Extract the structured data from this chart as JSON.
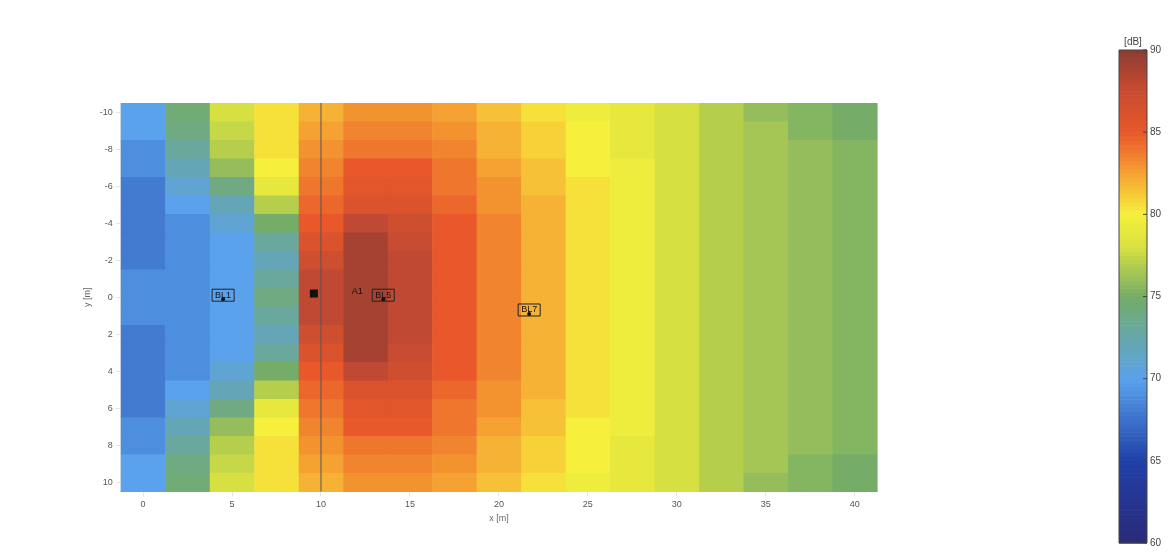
{
  "chart_data": {
    "type": "heatmap",
    "xlabel": "x [m]",
    "ylabel": "y [m]",
    "clabel": "[dB]",
    "clim": [
      60,
      90
    ],
    "cticks": [
      60,
      65,
      70,
      75,
      80,
      85,
      90
    ],
    "categories": [
      "0",
      null,
      "5",
      null,
      "10",
      null,
      "15",
      null,
      "20",
      null,
      "25",
      null,
      "30",
      null,
      "35",
      null,
      "40"
    ],
    "y_categories": [
      "-10",
      null,
      "-8",
      null,
      "-6",
      null,
      "-4",
      null,
      "-2",
      null,
      "0",
      null,
      "2",
      null,
      "4",
      null,
      "6",
      null,
      "8",
      null,
      "10"
    ],
    "cells": [
      [
        70,
        74.5,
        78,
        80.5,
        82,
        83,
        83,
        82.5,
        81.5,
        80.5,
        79.5,
        79,
        78,
        77,
        76,
        75.5,
        75
      ],
      [
        70,
        74,
        77.5,
        80.5,
        82.5,
        83.5,
        83.5,
        83,
        82,
        81,
        80,
        79,
        78,
        77,
        76.5,
        75.5,
        75
      ],
      [
        69,
        73,
        77,
        80.5,
        83,
        84,
        84,
        83.5,
        82,
        81,
        80,
        79,
        78,
        77,
        76.5,
        76,
        75.5
      ],
      [
        69,
        72,
        76,
        80,
        83.5,
        85,
        85,
        84,
        82.5,
        81.5,
        80,
        79.5,
        78,
        77,
        76.5,
        76,
        75.5
      ],
      [
        68,
        71,
        74,
        79,
        84,
        85.5,
        85.5,
        84,
        83,
        81.5,
        80.5,
        79.5,
        78,
        77,
        76.5,
        76,
        75.5
      ],
      [
        68,
        70,
        72,
        77,
        84.5,
        86,
        86,
        84.5,
        83,
        82,
        80.5,
        79.5,
        78,
        77,
        76.5,
        76,
        75.5
      ],
      [
        68,
        69,
        71,
        75,
        85,
        88,
        87,
        85,
        83.5,
        82,
        80.5,
        79.5,
        78,
        77,
        76.5,
        76,
        75.5
      ],
      [
        68,
        69,
        70,
        73,
        86,
        89,
        87.5,
        85,
        83.5,
        82,
        80.5,
        79.5,
        78,
        77,
        76.5,
        76,
        75.5
      ],
      [
        68,
        69,
        70,
        72,
        87,
        89,
        88,
        85,
        83.5,
        82,
        80.5,
        79.5,
        78,
        77,
        76.5,
        76,
        75.5
      ],
      [
        69,
        69,
        70,
        73,
        88,
        89,
        88,
        85,
        83.5,
        82,
        80.5,
        79.5,
        78,
        77,
        76.5,
        76,
        75.5
      ],
      [
        69,
        69,
        70,
        74,
        88,
        89,
        88,
        85,
        83.5,
        82,
        80.5,
        79.5,
        78,
        77,
        76.5,
        76,
        75.5
      ],
      [
        69,
        69,
        70,
        73,
        88,
        89,
        88,
        85,
        83.5,
        82,
        80.5,
        79.5,
        78,
        77,
        76.5,
        76,
        75.5
      ],
      [
        68,
        69,
        70,
        72,
        87,
        89,
        88,
        85,
        83.5,
        82,
        80.5,
        79.5,
        78,
        77,
        76.5,
        76,
        75.5
      ],
      [
        68,
        69,
        70,
        73,
        86,
        89,
        87.5,
        85,
        83.5,
        82,
        80.5,
        79.5,
        78,
        77,
        76.5,
        76,
        75.5
      ],
      [
        68,
        69,
        71,
        75,
        85,
        88,
        87,
        85,
        83.5,
        82,
        80.5,
        79.5,
        78,
        77,
        76.5,
        76,
        75.5
      ],
      [
        68,
        70,
        72,
        77,
        84.5,
        86,
        86,
        84.5,
        83,
        82,
        80.5,
        79.5,
        78,
        77,
        76.5,
        76,
        75.5
      ],
      [
        68,
        71,
        74,
        79,
        84,
        85.5,
        85.5,
        84,
        83,
        81.5,
        80.5,
        79.5,
        78,
        77,
        76.5,
        76,
        75.5
      ],
      [
        69,
        72,
        76,
        80,
        83.5,
        85,
        85,
        84,
        82.5,
        81.5,
        80,
        79.5,
        78,
        77,
        76.5,
        76,
        75.5
      ],
      [
        69,
        73,
        77,
        80.5,
        83,
        84,
        84,
        83.5,
        82,
        81,
        80,
        79,
        78,
        77,
        76.5,
        76,
        75.5
      ],
      [
        70,
        74,
        77.5,
        80.5,
        82.5,
        83.5,
        83.5,
        83,
        82,
        81,
        80,
        79,
        78,
        77,
        76.5,
        75.5,
        75
      ],
      [
        70,
        74.5,
        78,
        80.5,
        82,
        83,
        83,
        82.5,
        81.5,
        80.5,
        79.5,
        79,
        78,
        77,
        76,
        75.5,
        75
      ]
    ],
    "ref_lines": [
      {
        "axis": "x",
        "value": "10",
        "color": "#555555"
      }
    ],
    "annotations": [
      "BL1",
      "A1",
      "BL5",
      "BL7"
    ]
  }
}
